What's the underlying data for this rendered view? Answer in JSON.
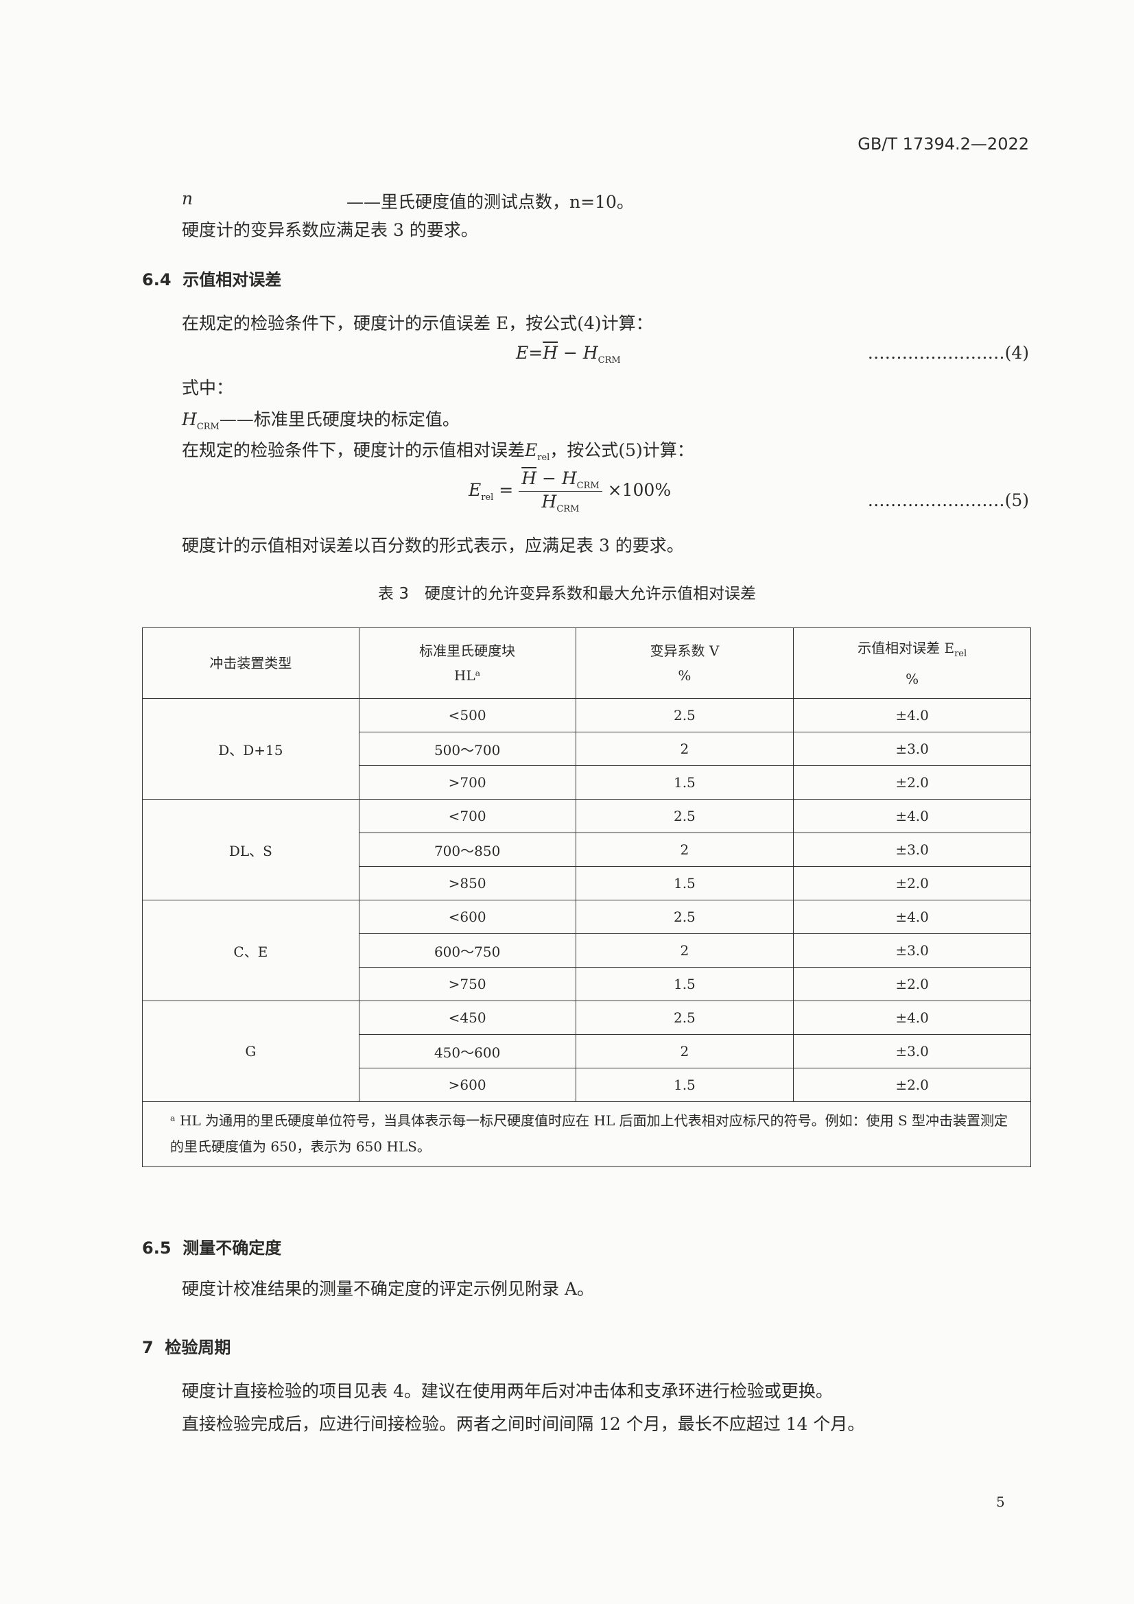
{
  "header": {
    "doc_id": "GB/T 17394.2—2022"
  },
  "lines": {
    "n_symbol": "n",
    "n_def": "——里氏硬度值的测试点数，n=10。",
    "cv_req": "硬度计的变异系数应满足表 3 的要求。"
  },
  "sec64": {
    "num": "6.4",
    "title": "示值相对误差",
    "p1": "在规定的检验条件下，硬度计的示值误差 E，按公式(4)计算：",
    "f4": {
      "lhs": "E",
      "eq": "=",
      "h": "H",
      "minus": " − ",
      "h2": "H",
      "sub": "CRM",
      "no": "……………………(4)"
    },
    "where": "式中：",
    "hcrm_sym": "H",
    "hcrm_sub": "CRM",
    "hcrm_def": "——标准里氏硬度块的标定值。",
    "p2a": "在规定的检验条件下，硬度计的示值相对误差",
    "p2sym": "E",
    "p2sub": "rel",
    "p2b": "，按公式(5)计算：",
    "f5": {
      "lhs": "E",
      "lsub": "rel",
      "eq": " =",
      "num_h": "H",
      "num_minus": " − ",
      "num_h2": "H",
      "sub": "CRM",
      "den_h": "H",
      "times": "×100%",
      "no": "……………………(5)"
    },
    "p3": "硬度计的示值相对误差以百分数的形式表示，应满足表 3 的要求。"
  },
  "table": {
    "caption": "表 3　硬度计的允许变异系数和最大允许示值相对误差",
    "headers": {
      "c1": "冲击装置类型",
      "c2a": "标准里氏硬度块",
      "c2b": "HLᵃ",
      "c3a": "变异系数 V",
      "c3b": "%",
      "c4a": "示值相对误差 E",
      "c4sub": "rel",
      "c4b": "%"
    },
    "groups": [
      {
        "type": "D、D+15",
        "rows": [
          [
            "<500",
            "2.5",
            "±4.0"
          ],
          [
            "500～700",
            "2",
            "±3.0"
          ],
          [
            ">700",
            "1.5",
            "±2.0"
          ]
        ]
      },
      {
        "type": "DL、S",
        "rows": [
          [
            "<700",
            "2.5",
            "±4.0"
          ],
          [
            "700～850",
            "2",
            "±3.0"
          ],
          [
            ">850",
            "1.5",
            "±2.0"
          ]
        ]
      },
      {
        "type": "C、E",
        "rows": [
          [
            "<600",
            "2.5",
            "±4.0"
          ],
          [
            "600～750",
            "2",
            "±3.0"
          ],
          [
            ">750",
            "1.5",
            "±2.0"
          ]
        ]
      },
      {
        "type": "G",
        "rows": [
          [
            "<450",
            "2.5",
            "±4.0"
          ],
          [
            "450～600",
            "2",
            "±3.0"
          ],
          [
            ">600",
            "1.5",
            "±2.0"
          ]
        ]
      }
    ],
    "footnote": "ᵃ HL 为通用的里氏硬度单位符号，当具体表示每一标尺硬度值时应在 HL 后面加上代表相对应标尺的符号。例如：使用 S 型冲击装置测定的里氏硬度值为 650，表示为 650 HLS。"
  },
  "sec65": {
    "num": "6.5",
    "title": "测量不确定度",
    "p1": "硬度计校准结果的测量不确定度的评定示例见附录 A。"
  },
  "sec7": {
    "num": "7",
    "title": "检验周期",
    "p1": "硬度计直接检验的项目见表 4。建议在使用两年后对冲击体和支承环进行检验或更换。",
    "p2": "直接检验完成后，应进行间接检验。两者之间时间间隔 12 个月，最长不应超过 14 个月。"
  },
  "page_number": "5"
}
